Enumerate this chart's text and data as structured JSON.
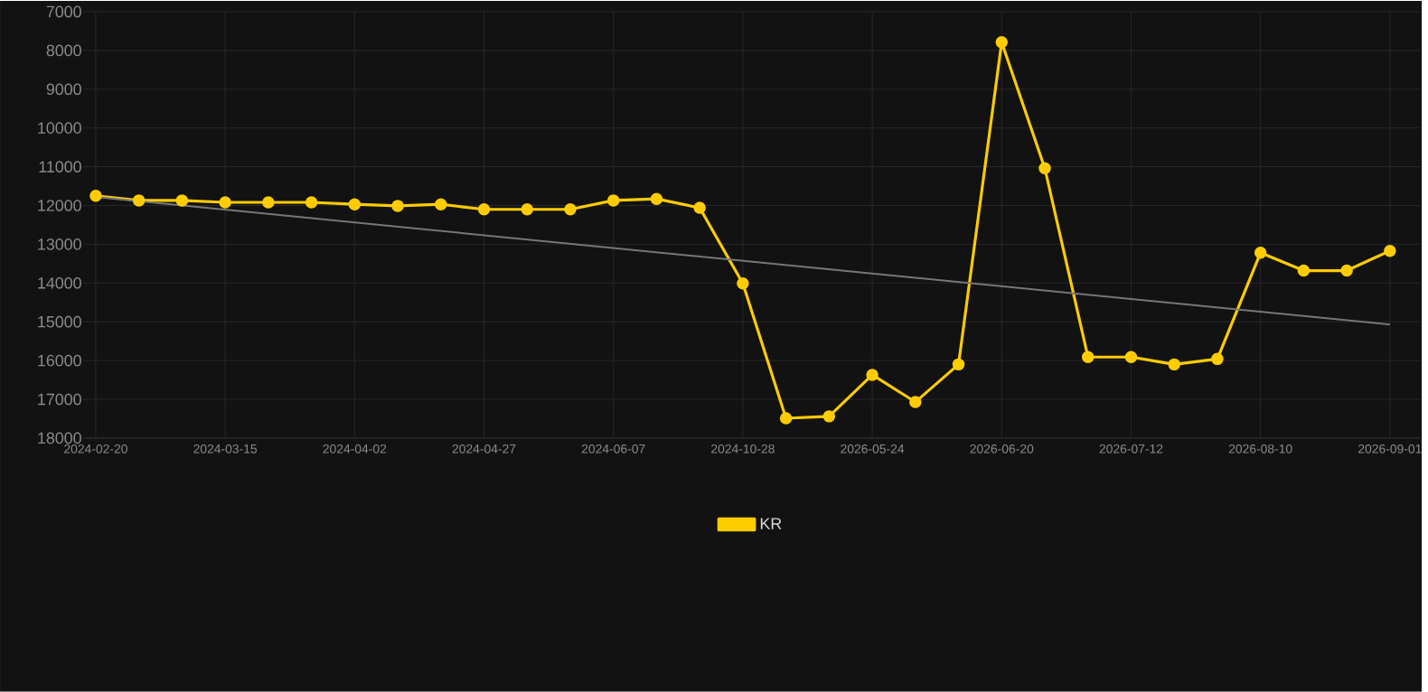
{
  "chart_data": {
    "type": "line",
    "categories": [
      "2024-02-20",
      null,
      null,
      "2024-03-15",
      null,
      null,
      "2024-04-02",
      null,
      null,
      "2024-04-27",
      null,
      null,
      "2024-06-07",
      null,
      null,
      "2024-10-28",
      null,
      null,
      "2026-05-24",
      null,
      null,
      "2026-06-20",
      null,
      null,
      "2026-07-12",
      null,
      null,
      "2026-08-10",
      null,
      null,
      "2026-09-01"
    ],
    "series": [
      {
        "name": "KR",
        "color": "#ffcc00",
        "marker": "circle",
        "values": [
          11750,
          11870,
          11870,
          11920,
          11920,
          11920,
          11970,
          12010,
          11970,
          12100,
          12100,
          12100,
          11870,
          11830,
          12060,
          14010,
          17490,
          17440,
          16370,
          17070,
          16100,
          7790,
          11040,
          15910,
          15910,
          16100,
          15960,
          13220,
          13680,
          13680,
          13170
        ]
      },
      {
        "type": "line",
        "color": "#777777",
        "marker": "none",
        "values": [
          11780,
          null,
          null,
          null,
          null,
          null,
          null,
          null,
          null,
          null,
          null,
          null,
          null,
          null,
          null,
          null,
          null,
          null,
          null,
          null,
          null,
          null,
          null,
          null,
          null,
          null,
          null,
          null,
          null,
          null,
          15070
        ]
      }
    ],
    "ylim": [
      18000,
      7000
    ],
    "yticks": [
      7000,
      8000,
      9000,
      10000,
      11000,
      12000,
      13000,
      14000,
      15000,
      16000,
      17000,
      18000
    ],
    "grid": true,
    "legend": "bottom"
  }
}
